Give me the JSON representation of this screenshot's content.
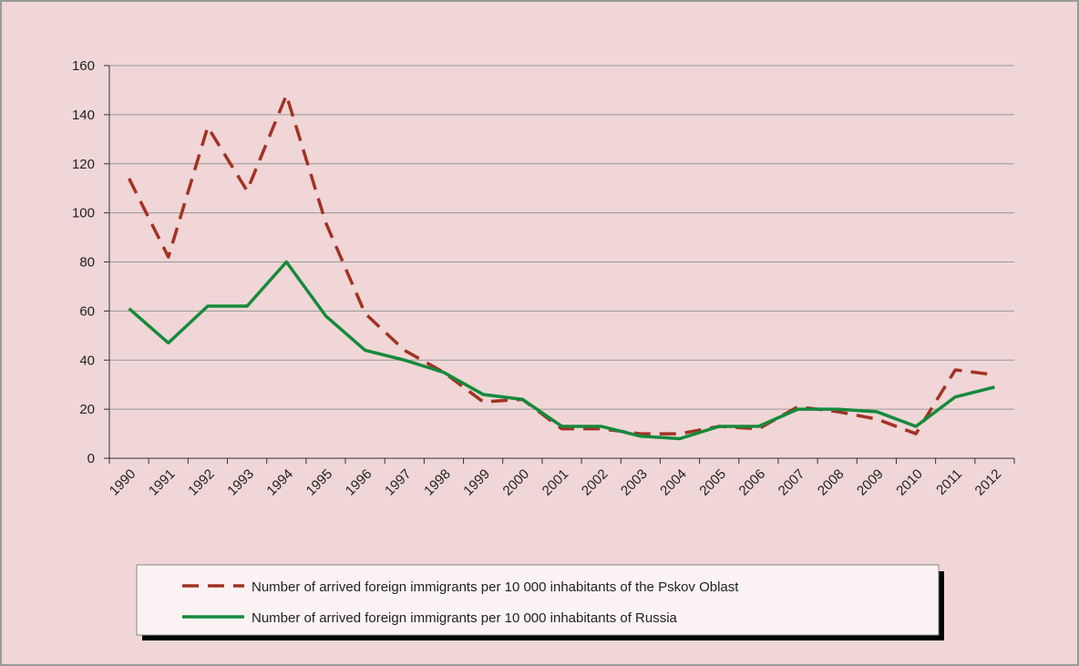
{
  "chart_data": {
    "type": "line",
    "categories": [
      "1990",
      "1991",
      "1992",
      "1993",
      "1994",
      "1995",
      "1996",
      "1997",
      "1998",
      "1999",
      "2000",
      "2001",
      "2002",
      "2003",
      "2004",
      "2005",
      "2006",
      "2007",
      "2008",
      "2009",
      "2010",
      "2011",
      "2012"
    ],
    "series": [
      {
        "name": "Number of arrived foreign immigrants per 10 000 inhabitants of the Pskov Oblast",
        "color": "#a33224",
        "dash": true,
        "values": [
          114,
          82,
          135,
          109,
          148,
          96,
          59,
          44,
          35,
          23,
          24,
          12,
          12,
          10,
          10,
          13,
          12,
          21,
          19,
          16,
          10,
          36,
          34
        ]
      },
      {
        "name": "Number of arrived foreign immigrants per 10 000 inhabitants of Russia",
        "color": "#158a3c",
        "dash": false,
        "values": [
          61,
          47,
          62,
          62,
          80,
          58,
          44,
          40,
          35,
          26,
          24,
          13,
          13,
          9,
          8,
          13,
          13,
          20,
          20,
          19,
          13,
          25,
          29
        ]
      }
    ],
    "ylim": [
      0,
      160
    ],
    "yticks": [
      0,
      20,
      40,
      60,
      80,
      100,
      120,
      140,
      160
    ],
    "grid": true
  }
}
